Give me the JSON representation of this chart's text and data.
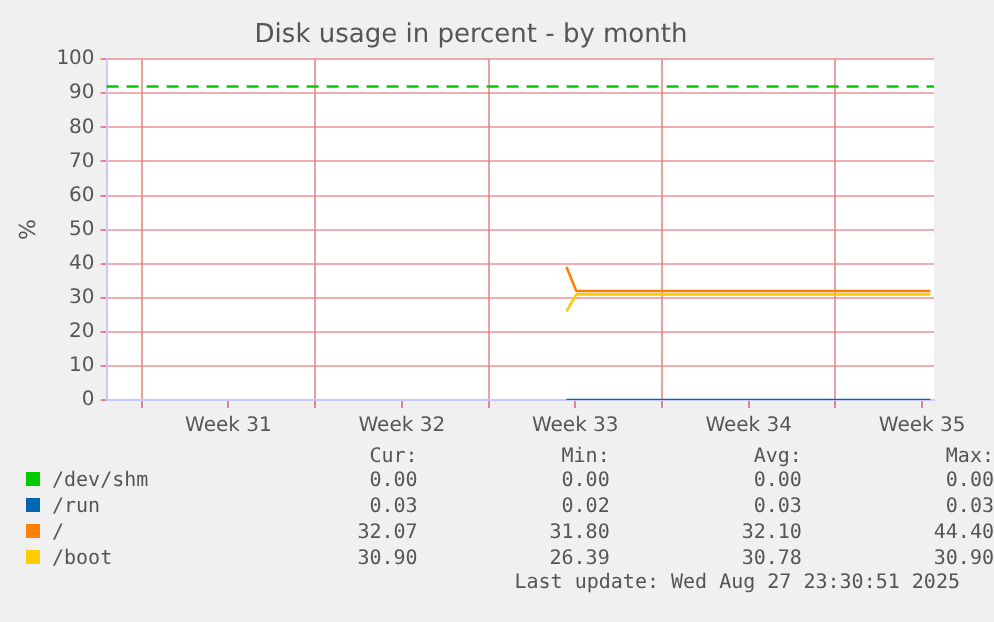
{
  "chart_data": {
    "type": "line",
    "title": "Disk usage in percent - by month",
    "ylabel": "%",
    "xlim": [
      "2025-07-25T14:00",
      "2025-08-27T23:30"
    ],
    "xticks": [
      {
        "value": "2025-07-27T00:00",
        "label": null
      },
      {
        "value": "2025-07-30T12:00",
        "label": "Week 31"
      },
      {
        "value": "2025-08-03T00:00",
        "label": null
      },
      {
        "value": "2025-08-06T12:00",
        "label": "Week 32"
      },
      {
        "value": "2025-08-10T00:00",
        "label": null
      },
      {
        "value": "2025-08-13T12:00",
        "label": "Week 33"
      },
      {
        "value": "2025-08-17T00:00",
        "label": null
      },
      {
        "value": "2025-08-20T12:00",
        "label": "Week 34"
      },
      {
        "value": "2025-08-24T00:00",
        "label": null
      },
      {
        "value": "2025-08-27T12:00",
        "label": "Week 35"
      }
    ],
    "ylim": [
      0,
      100
    ],
    "yticks": [
      0,
      10,
      20,
      30,
      40,
      50,
      60,
      70,
      80,
      90,
      100
    ],
    "grid": true,
    "legend": "bottom",
    "marker": "none",
    "line_style": "solid",
    "series": [
      {
        "name": "/dev/shm",
        "color": "#00cc00"
      },
      {
        "name": "/run",
        "color": "#0066b3",
        "x": [
          "2025-08-13T03:30",
          "2025-08-27T20:00"
        ],
        "values": [
          0,
          0
        ]
      },
      {
        "name": "/",
        "color": "#ff8000",
        "x": [
          "2025-08-13T03:30",
          "2025-08-13T13:00",
          "2025-08-27T20:00"
        ],
        "values": [
          39,
          32,
          32
        ]
      },
      {
        "name": "/boot",
        "color": "#ffcc00",
        "x": [
          "2025-08-13T03:30",
          "2025-08-13T13:00",
          "2025-08-27T20:00"
        ],
        "values": [
          26,
          31,
          31
        ]
      }
    ],
    "ref_lines": [
      {
        "axis": "y",
        "value": 92,
        "color": "#00cc00",
        "line_style": "dashed"
      }
    ],
    "annotations": [
      "Cur:",
      "Min:",
      "Avg:",
      "Max:",
      "0.00",
      "0.00",
      "0.00",
      "0.00",
      "0.03",
      "0.02",
      "0.03",
      "0.03",
      "32.07",
      "31.80",
      "32.10",
      "44.40",
      "30.90",
      "26.39",
      "30.78",
      "30.90",
      "Last update: Wed Aug 27 23:30:51 2025"
    ]
  }
}
